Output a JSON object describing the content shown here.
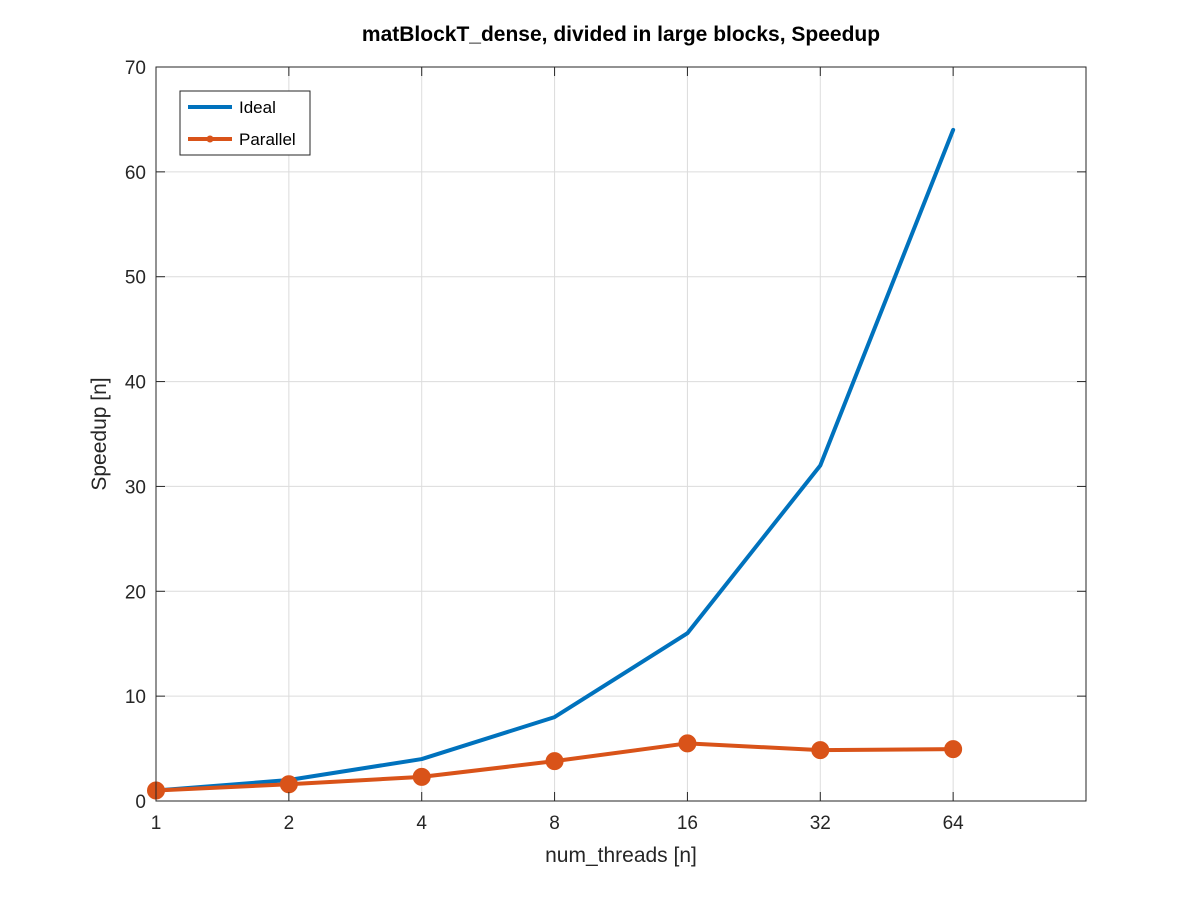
{
  "chart_data": {
    "type": "line",
    "title": "matBlockT_dense, divided in large blocks, Speedup",
    "xlabel": "num_threads [n]",
    "ylabel": "Speedup [n]",
    "x_scale": "log2",
    "categories": [
      "1",
      "2",
      "4",
      "8",
      "16",
      "32",
      "64"
    ],
    "x": [
      1,
      2,
      4,
      8,
      16,
      32,
      64
    ],
    "xlim": [
      1,
      128
    ],
    "ylim": [
      0,
      70
    ],
    "yticks": [
      0,
      10,
      20,
      30,
      40,
      50,
      60,
      70
    ],
    "grid": true,
    "legend_position": "top-left",
    "series": [
      {
        "name": "Ideal",
        "color": "#0072BD",
        "marker": "none",
        "values": [
          1,
          2,
          4,
          8,
          16,
          32,
          64
        ]
      },
      {
        "name": "Parallel",
        "color": "#D95319",
        "marker": "circle",
        "values": [
          1.0,
          1.6,
          2.3,
          3.8,
          5.5,
          4.85,
          4.95
        ]
      }
    ]
  }
}
